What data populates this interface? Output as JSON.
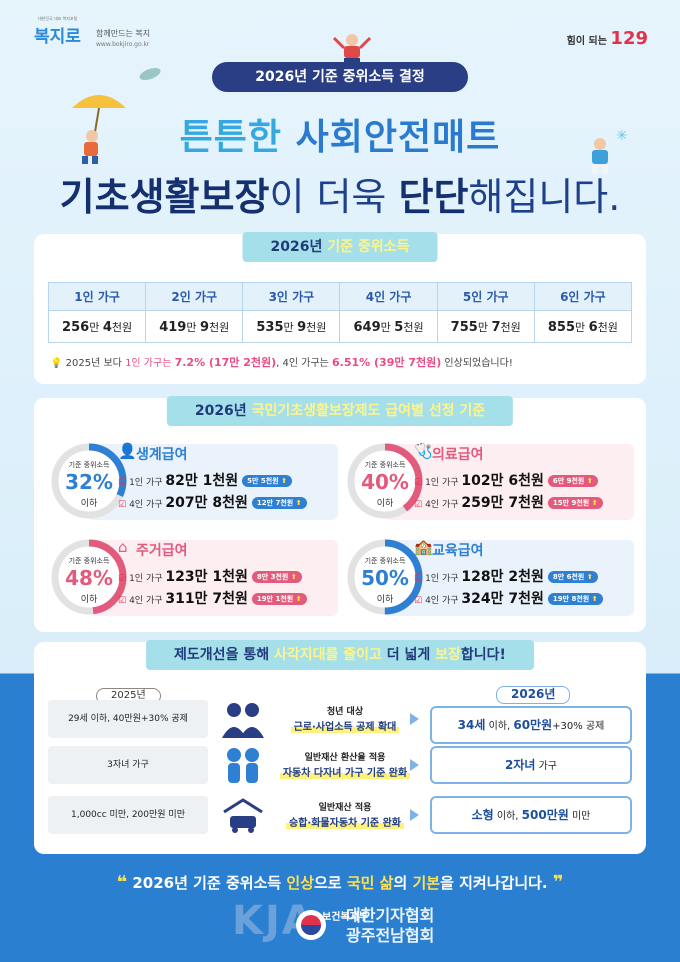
{
  "header": {
    "brand_tagline": "함께만드는 복지",
    "brand_url": "www.bokjiro.go.kr",
    "brand_micro": "대한민국 대표 복지포털",
    "brand_name": "복지로",
    "right_logo_text": "힘이 되는",
    "right_logo_num": "129",
    "pill": "2026년 기준 중위소득 결정",
    "headline1_a": "튼튼한 ",
    "headline1_b": "사회안전매트",
    "headline2_a": "기초생활보장",
    "headline2_b": "이 더욱 ",
    "headline2_c": "단단",
    "headline2_d": "해집니다."
  },
  "income": {
    "title_a": "2026년 ",
    "title_b": "기준 중위소득",
    "columns": [
      "1인 가구",
      "2인 가구",
      "3인 가구",
      "4인 가구",
      "5인 가구",
      "6인 가구"
    ],
    "values": [
      {
        "a": "256",
        "b": "만 ",
        "c": "4",
        "d": "천원"
      },
      {
        "a": "419",
        "b": "만 ",
        "c": "9",
        "d": "천원"
      },
      {
        "a": "535",
        "b": "만 ",
        "c": "9",
        "d": "천원"
      },
      {
        "a": "649",
        "b": "만 ",
        "c": "5",
        "d": "천원"
      },
      {
        "a": "755",
        "b": "만 ",
        "c": "7",
        "d": "천원"
      },
      {
        "a": "855",
        "b": "만 ",
        "c": "6",
        "d": "천원"
      }
    ],
    "note": {
      "t1": "2025년 보다 ",
      "t2": "1인 가구는 ",
      "t3": "7.2% (17만 2천원)",
      "t4": ", 4인 가구는 ",
      "t5": "6.51% (39만 7천원)",
      "t6": " 인상되었습니다!"
    }
  },
  "benefits": {
    "title_a": "2026년 ",
    "title_b": "국민기초생활보장제도 급여별 선정 기준",
    "ring_label": "기준 중위소득",
    "ring_sub": "이하",
    "items": [
      {
        "name": "생계급여",
        "pct": "32%",
        "color": "#2f7fd3",
        "bg": "#eaf3fc",
        "r1": "1인 가구",
        "a1": "82만 1천원",
        "b1": "5만 5천원",
        "r2": "4인 가구",
        "a2": "207만 8천원",
        "b2": "12만 7천원",
        "percent": 32
      },
      {
        "name": "의료급여",
        "pct": "40%",
        "color": "#e25b7c",
        "bg": "#fdeef2",
        "r1": "1인 가구",
        "a1": "102만 6천원",
        "b1": "6만 9천원",
        "r2": "4인 가구",
        "a2": "259만 7천원",
        "b2": "15만 9천원",
        "percent": 40
      },
      {
        "name": "주거급여",
        "pct": "48%",
        "color": "#e25b7c",
        "bg": "#fdeef2",
        "r1": "1인 가구",
        "a1": "123만 1천원",
        "b1": "8만 3천원",
        "r2": "4인 가구",
        "a2": "311만 7천원",
        "b2": "19만 1천원",
        "percent": 48
      },
      {
        "name": "교육급여",
        "pct": "50%",
        "color": "#2f7fd3",
        "bg": "#eaf3fc",
        "r1": "1인 가구",
        "a1": "128만 2천원",
        "b1": "8만 6천원",
        "r2": "4인 가구",
        "a2": "324만 7천원",
        "b2": "19만 8천원",
        "percent": 50
      }
    ]
  },
  "improve": {
    "title_a": "제도개선을 통해 ",
    "title_b": "사각지대를 줄이고",
    "title_c": " 더 넓게 ",
    "title_d": "보장",
    "title_e": "합니다!",
    "year_before": "2025년",
    "year_after": "2026년",
    "rows": [
      {
        "before": "29세 이하, 40만원+30% 공제",
        "mid_title": "청년 대상",
        "mid_sub": "근로·사업소득 공제 확대",
        "after_a": "34세",
        "after_b": " 이하, ",
        "after_c": "60만원",
        "after_d": "+30% 공제"
      },
      {
        "before": "3자녀 가구",
        "mid_title": "일반재산 환산율 적용",
        "mid_sub": "자동차 다자녀 가구 기준 완화",
        "after_a": "2자녀",
        "after_b": " 가구",
        "after_c": "",
        "after_d": ""
      },
      {
        "before": "1,000cc 미만, 200만원 미만",
        "mid_title": "일반재산 적용",
        "mid_sub": "승합·화물자동차 기준 완화",
        "after_a": "소형",
        "after_b": " 이하, ",
        "after_c": "500만원",
        "after_d": " 미만"
      }
    ]
  },
  "footer": {
    "q_open": "❝",
    "q_close": "❞",
    "t1": "2026년 기준 중위소득 ",
    "t2": "인상",
    "t3": "으로 ",
    "t4": "국민 삶",
    "t5": "의 ",
    "t6": "기본",
    "t7": "을 지켜나갑니다.",
    "watermark": "KJA",
    "org1": "대한기자협회",
    "org2": "광주전남협회",
    "org_small": "보건복지부"
  }
}
